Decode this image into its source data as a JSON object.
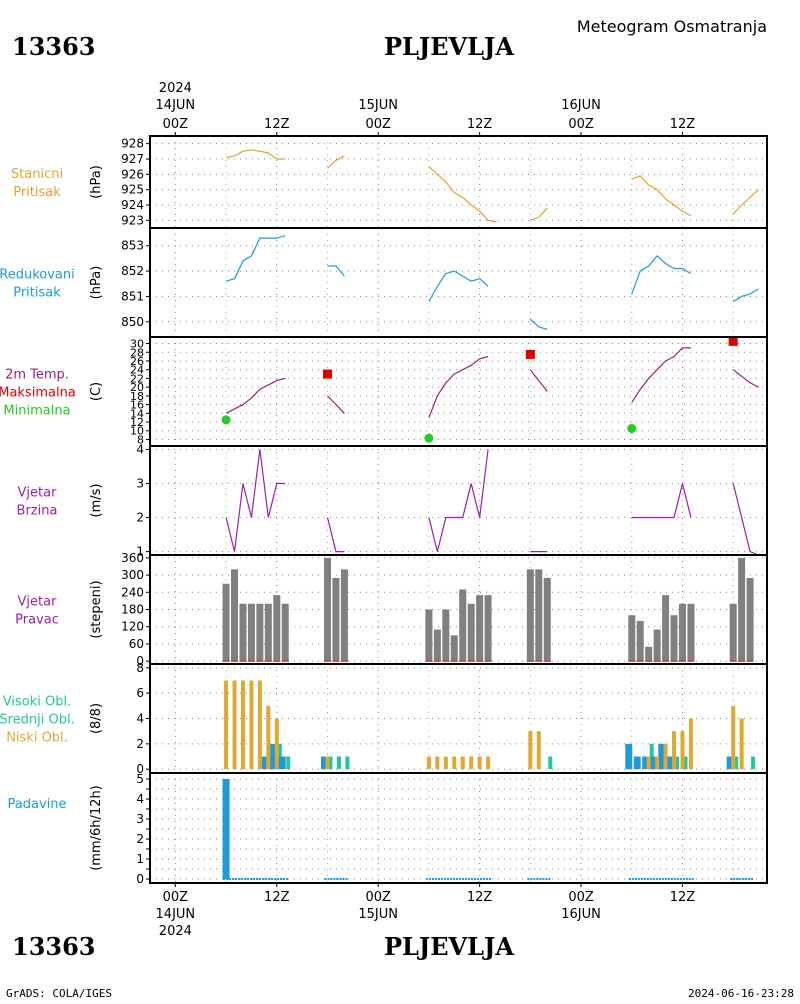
{
  "header": {
    "station_id": "13363",
    "station_name": "PLJEVLJA",
    "chart_type_label": "Meteogram Osmatranja"
  },
  "footer": {
    "station_id": "13363",
    "station_name": "PLJEVLJA",
    "credit": "GrADS: COLA/IGES",
    "timestamp": "2024-06-16-23:28"
  },
  "time_axis": {
    "year": "2024",
    "top_ticks": [
      {
        "t": 0,
        "hour": "00Z",
        "date": "14JUN",
        "year": "2024"
      },
      {
        "t": 12,
        "hour": "12Z"
      },
      {
        "t": 24,
        "hour": "00Z",
        "date": "15JUN"
      },
      {
        "t": 36,
        "hour": "12Z"
      },
      {
        "t": 48,
        "hour": "00Z",
        "date": "16JUN"
      },
      {
        "t": 60,
        "hour": "12Z"
      }
    ],
    "bottom_ticks": [
      {
        "t": 0,
        "hour": "00Z",
        "date": "14JUN",
        "year": "2024"
      },
      {
        "t": 12,
        "hour": "12Z"
      },
      {
        "t": 24,
        "hour": "00Z",
        "date": "15JUN"
      },
      {
        "t": 36,
        "hour": "12Z"
      },
      {
        "t": 48,
        "hour": "00Z",
        "date": "16JUN"
      },
      {
        "t": 60,
        "hour": "12Z"
      }
    ],
    "t_range": [
      -3,
      70
    ]
  },
  "colors": {
    "pressure": "#e8a030",
    "reduced": "#1e9ad8",
    "temp_line": "#a0207a",
    "max": "#e00000",
    "min": "#22cc22",
    "wind": "#9b1fa8",
    "dir_bar": "#808080",
    "dir_zero": "#cc2222",
    "high": "#1e9ad8",
    "mid": "#20c8a0",
    "low": "#e0a830",
    "precip": "#1e9ad8"
  },
  "chart_data": [
    {
      "type": "line",
      "id": "station_pressure",
      "labels": [
        "Stanicni",
        "Pritisak"
      ],
      "unit": "(hPa)",
      "ylim": [
        922.5,
        928.5
      ],
      "yticks": [
        923,
        924,
        925,
        926,
        927,
        928
      ],
      "segments": [
        {
          "x": [
            6,
            7,
            8,
            9,
            10,
            11,
            12,
            13
          ],
          "y": [
            927.1,
            927.2,
            927.5,
            927.6,
            927.5,
            927.4,
            927.0,
            927.0
          ]
        },
        {
          "x": [
            18,
            19,
            20
          ],
          "y": [
            926.4,
            926.9,
            927.2
          ]
        },
        {
          "x": [
            30,
            31,
            32,
            33,
            34,
            35,
            36,
            37,
            38
          ],
          "y": [
            926.5,
            926.0,
            925.5,
            924.8,
            924.5,
            924.0,
            923.6,
            923.0,
            922.9
          ]
        },
        {
          "x": [
            42,
            43,
            44
          ],
          "y": [
            923.0,
            923.2,
            923.8
          ]
        },
        {
          "x": [
            54,
            55,
            56,
            57,
            58,
            59,
            60,
            61
          ],
          "y": [
            925.7,
            925.9,
            925.3,
            925.0,
            924.4,
            924.0,
            923.6,
            923.3
          ]
        },
        {
          "x": [
            66,
            67,
            68,
            69
          ],
          "y": [
            923.4,
            924.0,
            924.5,
            925.0
          ]
        }
      ]
    },
    {
      "type": "line",
      "id": "reduced_pressure",
      "labels": [
        "Redukovani",
        "Pritisak"
      ],
      "unit": "(hPa)",
      "ylim": [
        849.4,
        853.7
      ],
      "yticks": [
        850,
        851,
        852,
        853
      ],
      "segments": [
        {
          "x": [
            6,
            7,
            8,
            9,
            10,
            11,
            12,
            13
          ],
          "y": [
            851.6,
            851.7,
            852.4,
            852.6,
            853.3,
            853.3,
            853.3,
            853.4
          ]
        },
        {
          "x": [
            18,
            19,
            20
          ],
          "y": [
            852.2,
            852.2,
            851.8
          ]
        },
        {
          "x": [
            30,
            31,
            32,
            33,
            34,
            35,
            36,
            37
          ],
          "y": [
            850.8,
            851.4,
            851.9,
            852.0,
            851.8,
            851.6,
            851.7,
            851.4
          ]
        },
        {
          "x": [
            42,
            43,
            44
          ],
          "y": [
            850.1,
            849.8,
            849.7
          ]
        },
        {
          "x": [
            54,
            55,
            56,
            57,
            58,
            59,
            60,
            61
          ],
          "y": [
            851.1,
            852.0,
            852.2,
            852.6,
            852.3,
            852.1,
            852.1,
            851.9
          ]
        },
        {
          "x": [
            66,
            67,
            68,
            69
          ],
          "y": [
            850.8,
            851.0,
            851.1,
            851.3
          ]
        }
      ]
    },
    {
      "type": "line",
      "id": "temperature",
      "labels": [
        "2m Temp.",
        "Maksimalna",
        "Minimalna"
      ],
      "unit": "(C)",
      "ylim": [
        6.5,
        31.5
      ],
      "yticks": [
        8,
        10,
        12,
        14,
        16,
        18,
        20,
        22,
        24,
        26,
        28,
        30
      ],
      "segments": [
        {
          "x": [
            6,
            7,
            8,
            9,
            10,
            11,
            12,
            13
          ],
          "y": [
            14.0,
            15.0,
            16.0,
            17.5,
            19.5,
            20.5,
            21.5,
            22.0
          ]
        },
        {
          "x": [
            18,
            19,
            20
          ],
          "y": [
            18.0,
            16.0,
            14.0
          ]
        },
        {
          "x": [
            30,
            31,
            32,
            33,
            34,
            35,
            36,
            37
          ],
          "y": [
            13.0,
            18.0,
            21.0,
            23.0,
            24.0,
            25.0,
            26.5,
            27.0
          ]
        },
        {
          "x": [
            42,
            43,
            44
          ],
          "y": [
            24.0,
            21.5,
            19.0
          ]
        },
        {
          "x": [
            54,
            55,
            56,
            57,
            58,
            59,
            60,
            61
          ],
          "y": [
            16.5,
            19.5,
            22.0,
            24.0,
            26.0,
            27.0,
            29.0,
            29.0
          ]
        },
        {
          "x": [
            66,
            67,
            68,
            69
          ],
          "y": [
            24.0,
            22.5,
            21.0,
            20.0
          ]
        }
      ],
      "max_points": [
        {
          "x": 18,
          "y": 23.0
        },
        {
          "x": 42,
          "y": 27.5
        },
        {
          "x": 66,
          "y": 30.5
        }
      ],
      "min_points": [
        {
          "x": 6,
          "y": 12.5
        },
        {
          "x": 30,
          "y": 8.3
        },
        {
          "x": 54,
          "y": 10.5
        }
      ]
    },
    {
      "type": "line",
      "id": "wind_speed",
      "labels": [
        "Vjetar",
        "Brzina"
      ],
      "unit": "(m/s)",
      "ylim": [
        0.9,
        4.1
      ],
      "yticks": [
        1,
        2,
        3,
        4
      ],
      "segments": [
        {
          "x": [
            6,
            7,
            8,
            9,
            10,
            11,
            12,
            13
          ],
          "y": [
            2,
            1,
            3,
            2,
            4,
            2,
            3,
            3
          ]
        },
        {
          "x": [
            18,
            19,
            20
          ],
          "y": [
            2,
            1,
            1
          ]
        },
        {
          "x": [
            30,
            31,
            32,
            33,
            34,
            35,
            36,
            37
          ],
          "y": [
            2,
            1,
            2,
            2,
            2,
            3,
            2,
            4
          ]
        },
        {
          "x": [
            42,
            43,
            44
          ],
          "y": [
            1,
            1,
            1
          ]
        },
        {
          "x": [
            54,
            55,
            56,
            57,
            58,
            59,
            60,
            61
          ],
          "y": [
            2,
            2,
            2,
            2,
            2,
            2,
            3,
            2
          ]
        },
        {
          "x": [
            66,
            67,
            68,
            69
          ],
          "y": [
            3,
            2,
            1,
            0.9
          ]
        }
      ]
    },
    {
      "type": "bar",
      "id": "wind_direction",
      "labels": [
        "Vjetar",
        "Pravac"
      ],
      "unit": "(stepeni)",
      "ylim": [
        -10,
        370
      ],
      "yticks": [
        0,
        60,
        120,
        180,
        240,
        300,
        360
      ],
      "x": [
        6,
        7,
        8,
        9,
        10,
        11,
        12,
        13,
        18,
        19,
        20,
        30,
        31,
        32,
        33,
        34,
        35,
        36,
        37,
        42,
        43,
        44,
        54,
        55,
        56,
        57,
        58,
        59,
        60,
        61,
        66,
        67,
        68
      ],
      "values": [
        270,
        320,
        200,
        200,
        200,
        200,
        230,
        200,
        360,
        290,
        320,
        180,
        110,
        180,
        90,
        250,
        200,
        230,
        230,
        320,
        320,
        290,
        160,
        140,
        50,
        110,
        230,
        160,
        200,
        200,
        200,
        360,
        290
      ]
    },
    {
      "type": "bar",
      "id": "clouds",
      "labels": [
        "Visoki Obl.",
        "Srednji Obl.",
        "Niski Obl."
      ],
      "unit": "(8/8)",
      "ylim": [
        -0.3,
        8.3
      ],
      "yticks": [
        0,
        2,
        4,
        6,
        8
      ],
      "x": [
        6,
        7,
        8,
        9,
        10,
        11,
        12,
        13,
        18,
        19,
        20,
        30,
        31,
        32,
        33,
        34,
        35,
        36,
        37,
        42,
        43,
        44,
        54,
        55,
        56,
        57,
        58,
        59,
        60,
        61,
        66,
        67,
        68
      ],
      "series": [
        {
          "name": "Visoki Obl.",
          "values": [
            0,
            0,
            0,
            0,
            0,
            1,
            2,
            1,
            1,
            0,
            0,
            0,
            0,
            0,
            0,
            0,
            0,
            0,
            0,
            0,
            0,
            0,
            2,
            1,
            1,
            1,
            2,
            1,
            0,
            0,
            1,
            0,
            0
          ]
        },
        {
          "name": "Srednji Obl.",
          "values": [
            0,
            0,
            0,
            0,
            0,
            1,
            2,
            1,
            1,
            1,
            1,
            0,
            0,
            0,
            0,
            0,
            0,
            0,
            0,
            0,
            0,
            1,
            0,
            0,
            2,
            2,
            1,
            1,
            1,
            0,
            1,
            0,
            1
          ]
        },
        {
          "name": "Niski Obl.",
          "values": [
            7,
            7,
            7,
            7,
            7,
            5,
            4,
            0,
            1,
            0,
            0,
            1,
            1,
            1,
            1,
            1,
            1,
            1,
            1,
            3,
            3,
            0,
            0,
            0,
            1,
            1,
            2,
            3,
            3,
            4,
            5,
            4,
            0
          ]
        }
      ]
    },
    {
      "type": "bar",
      "id": "precipitation",
      "labels": [
        "Padavine"
      ],
      "unit": "(mm/6h/12h)",
      "ylim": [
        -0.2,
        5.3
      ],
      "yticks": [
        0,
        0.5,
        1,
        1.5,
        2,
        2.5,
        3,
        3.5,
        4,
        4.5,
        5
      ],
      "x": [
        6
      ],
      "values": [
        5.0
      ]
    }
  ]
}
